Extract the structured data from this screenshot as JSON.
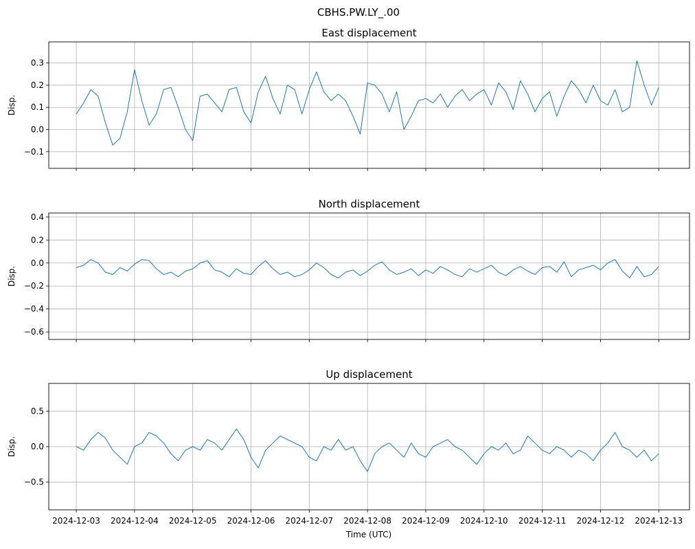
{
  "figure": {
    "title": "CBHS.PW.LY_.00",
    "xlabel": "Time (UTC)"
  },
  "chart_data": [
    {
      "type": "line",
      "title": "East displacement",
      "ylabel": "Disp.",
      "xlim": [
        "2024-12-02T12:40",
        "2024-12-13T12:40"
      ],
      "ylim": [
        -0.175,
        0.395
      ],
      "yticks": [
        -0.1,
        0.0,
        0.1,
        0.2,
        0.3
      ],
      "ytick_labels": [
        "−0.1",
        "0.0",
        "0.1",
        "0.2",
        "0.3"
      ],
      "grid": true,
      "series": [
        {
          "x": [
            "2024-12-03T00:00",
            "2024-12-03T03:00",
            "2024-12-03T06:00",
            "2024-12-03T09:00",
            "2024-12-03T12:00",
            "2024-12-03T15:00",
            "2024-12-03T18:00",
            "2024-12-03T21:00",
            "2024-12-04T00:00",
            "2024-12-04T03:00",
            "2024-12-04T06:00",
            "2024-12-04T09:00",
            "2024-12-04T12:00",
            "2024-12-04T15:00",
            "2024-12-04T18:00",
            "2024-12-04T21:00",
            "2024-12-05T00:00",
            "2024-12-05T03:00",
            "2024-12-05T06:00",
            "2024-12-05T09:00",
            "2024-12-05T12:00",
            "2024-12-05T15:00",
            "2024-12-05T18:00",
            "2024-12-05T21:00",
            "2024-12-06T00:00",
            "2024-12-06T03:00",
            "2024-12-06T06:00",
            "2024-12-06T09:00",
            "2024-12-06T12:00",
            "2024-12-06T15:00",
            "2024-12-06T18:00",
            "2024-12-06T21:00",
            "2024-12-07T00:00",
            "2024-12-07T03:00",
            "2024-12-07T06:00",
            "2024-12-07T09:00",
            "2024-12-07T12:00",
            "2024-12-07T15:00",
            "2024-12-07T18:00",
            "2024-12-07T21:00",
            "2024-12-08T00:00",
            "2024-12-08T03:00",
            "2024-12-08T06:00",
            "2024-12-08T09:00",
            "2024-12-08T12:00",
            "2024-12-08T15:00",
            "2024-12-08T18:00",
            "2024-12-08T21:00",
            "2024-12-09T00:00",
            "2024-12-09T03:00",
            "2024-12-09T06:00",
            "2024-12-09T09:00",
            "2024-12-09T12:00",
            "2024-12-09T15:00",
            "2024-12-09T18:00",
            "2024-12-09T21:00",
            "2024-12-10T00:00",
            "2024-12-10T03:00",
            "2024-12-10T06:00",
            "2024-12-10T09:00",
            "2024-12-10T12:00",
            "2024-12-10T15:00",
            "2024-12-10T18:00",
            "2024-12-10T21:00",
            "2024-12-11T00:00",
            "2024-12-11T03:00",
            "2024-12-11T06:00",
            "2024-12-11T09:00",
            "2024-12-11T12:00",
            "2024-12-11T15:00",
            "2024-12-11T18:00",
            "2024-12-11T21:00",
            "2024-12-12T00:00",
            "2024-12-12T03:00",
            "2024-12-12T06:00",
            "2024-12-12T09:00",
            "2024-12-12T12:00",
            "2024-12-12T15:00",
            "2024-12-12T18:00",
            "2024-12-12T21:00",
            "2024-12-13T00:00"
          ],
          "y": [
            0.07,
            0.12,
            0.18,
            0.15,
            0.03,
            -0.07,
            -0.04,
            0.08,
            0.27,
            0.13,
            0.02,
            0.07,
            0.18,
            0.19,
            0.1,
            0.0,
            -0.05,
            0.15,
            0.16,
            0.12,
            0.08,
            0.18,
            0.19,
            0.08,
            0.03,
            0.17,
            0.24,
            0.14,
            0.07,
            0.2,
            0.18,
            0.07,
            0.18,
            0.26,
            0.17,
            0.13,
            0.16,
            0.13,
            0.06,
            -0.02,
            0.21,
            0.2,
            0.16,
            0.08,
            0.17,
            0.0,
            0.06,
            0.13,
            0.14,
            0.12,
            0.16,
            0.1,
            0.15,
            0.18,
            0.13,
            0.16,
            0.18,
            0.11,
            0.21,
            0.17,
            0.09,
            0.22,
            0.16,
            0.08,
            0.14,
            0.17,
            0.06,
            0.15,
            0.22,
            0.18,
            0.12,
            0.2,
            0.13,
            0.11,
            0.18,
            0.08,
            0.1,
            0.31,
            0.2,
            0.11,
            0.19
          ]
        }
      ]
    },
    {
      "type": "line",
      "title": "North displacement",
      "ylabel": "Disp.",
      "xlim": [
        "2024-12-02T12:40",
        "2024-12-13T12:40"
      ],
      "ylim": [
        -0.665,
        0.435
      ],
      "yticks": [
        -0.6,
        -0.4,
        -0.2,
        0.0,
        0.2,
        0.4
      ],
      "ytick_labels": [
        "−0.6",
        "−0.4",
        "−0.2",
        "0.0",
        "0.2",
        "0.4"
      ],
      "grid": true,
      "series": [
        {
          "x": [
            "2024-12-03T00:00",
            "2024-12-03T03:00",
            "2024-12-03T06:00",
            "2024-12-03T09:00",
            "2024-12-03T12:00",
            "2024-12-03T15:00",
            "2024-12-03T18:00",
            "2024-12-03T21:00",
            "2024-12-04T00:00",
            "2024-12-04T03:00",
            "2024-12-04T06:00",
            "2024-12-04T09:00",
            "2024-12-04T12:00",
            "2024-12-04T15:00",
            "2024-12-04T18:00",
            "2024-12-04T21:00",
            "2024-12-05T00:00",
            "2024-12-05T03:00",
            "2024-12-05T06:00",
            "2024-12-05T09:00",
            "2024-12-05T12:00",
            "2024-12-05T15:00",
            "2024-12-05T18:00",
            "2024-12-05T21:00",
            "2024-12-06T00:00",
            "2024-12-06T03:00",
            "2024-12-06T06:00",
            "2024-12-06T09:00",
            "2024-12-06T12:00",
            "2024-12-06T15:00",
            "2024-12-06T18:00",
            "2024-12-06T21:00",
            "2024-12-07T00:00",
            "2024-12-07T03:00",
            "2024-12-07T06:00",
            "2024-12-07T09:00",
            "2024-12-07T12:00",
            "2024-12-07T15:00",
            "2024-12-07T18:00",
            "2024-12-07T21:00",
            "2024-12-08T00:00",
            "2024-12-08T03:00",
            "2024-12-08T06:00",
            "2024-12-08T09:00",
            "2024-12-08T12:00",
            "2024-12-08T15:00",
            "2024-12-08T18:00",
            "2024-12-08T21:00",
            "2024-12-09T00:00",
            "2024-12-09T03:00",
            "2024-12-09T06:00",
            "2024-12-09T09:00",
            "2024-12-09T12:00",
            "2024-12-09T15:00",
            "2024-12-09T18:00",
            "2024-12-09T21:00",
            "2024-12-10T00:00",
            "2024-12-10T03:00",
            "2024-12-10T06:00",
            "2024-12-10T09:00",
            "2024-12-10T12:00",
            "2024-12-10T15:00",
            "2024-12-10T18:00",
            "2024-12-10T21:00",
            "2024-12-11T00:00",
            "2024-12-11T03:00",
            "2024-12-11T06:00",
            "2024-12-11T09:00",
            "2024-12-11T12:00",
            "2024-12-11T15:00",
            "2024-12-11T18:00",
            "2024-12-11T21:00",
            "2024-12-12T00:00",
            "2024-12-12T03:00",
            "2024-12-12T06:00",
            "2024-12-12T09:00",
            "2024-12-12T12:00",
            "2024-12-12T15:00",
            "2024-12-12T18:00",
            "2024-12-12T21:00",
            "2024-12-13T00:00"
          ],
          "y": [
            -0.04,
            -0.02,
            0.03,
            0.0,
            -0.08,
            -0.1,
            -0.04,
            -0.07,
            -0.01,
            0.03,
            0.02,
            -0.05,
            -0.1,
            -0.08,
            -0.12,
            -0.07,
            -0.05,
            0.0,
            0.02,
            -0.06,
            -0.08,
            -0.12,
            -0.05,
            -0.09,
            -0.1,
            -0.03,
            0.02,
            -0.05,
            -0.1,
            -0.08,
            -0.12,
            -0.1,
            -0.06,
            0.0,
            -0.04,
            -0.1,
            -0.13,
            -0.08,
            -0.06,
            -0.11,
            -0.07,
            -0.02,
            0.01,
            -0.06,
            -0.1,
            -0.08,
            -0.05,
            -0.11,
            -0.06,
            -0.09,
            -0.03,
            -0.06,
            -0.1,
            -0.12,
            -0.05,
            -0.08,
            -0.05,
            -0.02,
            -0.08,
            -0.11,
            -0.06,
            -0.03,
            -0.07,
            -0.1,
            -0.04,
            -0.03,
            -0.08,
            0.01,
            -0.12,
            -0.06,
            -0.04,
            -0.02,
            -0.06,
            0.0,
            0.03,
            -0.07,
            -0.13,
            -0.03,
            -0.12,
            -0.1,
            -0.03
          ]
        }
      ]
    },
    {
      "type": "line",
      "title": "Up displacement",
      "ylabel": "Disp.",
      "xlim": [
        "2024-12-02T12:40",
        "2024-12-13T12:40"
      ],
      "ylim": [
        -0.89,
        0.89
      ],
      "yticks": [
        -0.5,
        0.0,
        0.5
      ],
      "ytick_labels": [
        "−0.5",
        "0.0",
        "0.5"
      ],
      "grid": true,
      "series": [
        {
          "x": [
            "2024-12-03T00:00",
            "2024-12-03T03:00",
            "2024-12-03T06:00",
            "2024-12-03T09:00",
            "2024-12-03T12:00",
            "2024-12-03T15:00",
            "2024-12-03T18:00",
            "2024-12-03T21:00",
            "2024-12-04T00:00",
            "2024-12-04T03:00",
            "2024-12-04T06:00",
            "2024-12-04T09:00",
            "2024-12-04T12:00",
            "2024-12-04T15:00",
            "2024-12-04T18:00",
            "2024-12-04T21:00",
            "2024-12-05T00:00",
            "2024-12-05T03:00",
            "2024-12-05T06:00",
            "2024-12-05T09:00",
            "2024-12-05T12:00",
            "2024-12-05T15:00",
            "2024-12-05T18:00",
            "2024-12-05T21:00",
            "2024-12-06T00:00",
            "2024-12-06T03:00",
            "2024-12-06T06:00",
            "2024-12-06T09:00",
            "2024-12-06T12:00",
            "2024-12-06T15:00",
            "2024-12-06T18:00",
            "2024-12-06T21:00",
            "2024-12-07T00:00",
            "2024-12-07T03:00",
            "2024-12-07T06:00",
            "2024-12-07T09:00",
            "2024-12-07T12:00",
            "2024-12-07T15:00",
            "2024-12-07T18:00",
            "2024-12-07T21:00",
            "2024-12-08T00:00",
            "2024-12-08T03:00",
            "2024-12-08T06:00",
            "2024-12-08T09:00",
            "2024-12-08T12:00",
            "2024-12-08T15:00",
            "2024-12-08T18:00",
            "2024-12-08T21:00",
            "2024-12-09T00:00",
            "2024-12-09T03:00",
            "2024-12-09T06:00",
            "2024-12-09T09:00",
            "2024-12-09T12:00",
            "2024-12-09T15:00",
            "2024-12-09T18:00",
            "2024-12-09T21:00",
            "2024-12-10T00:00",
            "2024-12-10T03:00",
            "2024-12-10T06:00",
            "2024-12-10T09:00",
            "2024-12-10T12:00",
            "2024-12-10T15:00",
            "2024-12-10T18:00",
            "2024-12-10T21:00",
            "2024-12-11T00:00",
            "2024-12-11T03:00",
            "2024-12-11T06:00",
            "2024-12-11T09:00",
            "2024-12-11T12:00",
            "2024-12-11T15:00",
            "2024-12-11T18:00",
            "2024-12-11T21:00",
            "2024-12-12T00:00",
            "2024-12-12T03:00",
            "2024-12-12T06:00",
            "2024-12-12T09:00",
            "2024-12-12T12:00",
            "2024-12-12T15:00",
            "2024-12-12T18:00",
            "2024-12-12T21:00",
            "2024-12-13T00:00"
          ],
          "y": [
            0.0,
            -0.05,
            0.1,
            0.2,
            0.12,
            -0.05,
            -0.15,
            -0.25,
            0.0,
            0.05,
            0.2,
            0.15,
            0.05,
            -0.1,
            -0.2,
            -0.05,
            0.0,
            -0.05,
            0.1,
            0.05,
            -0.05,
            0.1,
            0.25,
            0.1,
            -0.15,
            -0.3,
            -0.05,
            0.05,
            0.15,
            0.1,
            0.05,
            0.0,
            -0.15,
            -0.2,
            0.0,
            -0.05,
            0.1,
            -0.05,
            0.0,
            -0.2,
            -0.35,
            -0.1,
            0.0,
            0.05,
            -0.05,
            -0.15,
            0.05,
            -0.1,
            -0.15,
            0.0,
            0.05,
            0.1,
            0.0,
            -0.05,
            -0.15,
            -0.25,
            -0.1,
            0.0,
            -0.05,
            0.05,
            -0.1,
            -0.05,
            0.15,
            0.05,
            -0.05,
            -0.1,
            0.0,
            -0.05,
            -0.15,
            -0.05,
            -0.1,
            -0.2,
            -0.05,
            0.05,
            0.2,
            0.0,
            -0.05,
            -0.15,
            -0.05,
            -0.2,
            -0.1
          ]
        }
      ]
    }
  ],
  "x_axis": {
    "ticks": [
      "2024-12-03",
      "2024-12-04",
      "2024-12-05",
      "2024-12-06",
      "2024-12-07",
      "2024-12-08",
      "2024-12-09",
      "2024-12-10",
      "2024-12-11",
      "2024-12-12",
      "2024-12-13"
    ]
  },
  "colors": {
    "line": "#1f77b4",
    "grid": "#b0b0b0",
    "axes": "#000000"
  }
}
